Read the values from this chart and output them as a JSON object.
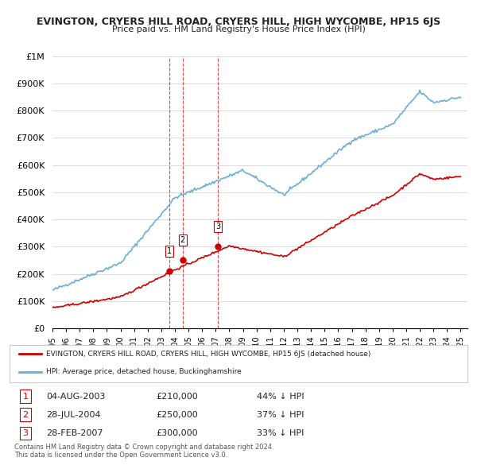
{
  "title": "EVINGTON, CRYERS HILL ROAD, CRYERS HILL, HIGH WYCOMBE, HP15 6JS",
  "subtitle": "Price paid vs. HM Land Registry's House Price Index (HPI)",
  "hpi_label": "HPI: Average price, detached house, Buckinghamshire",
  "property_label": "EVINGTON, CRYERS HILL ROAD, CRYERS HILL, HIGH WYCOMBE, HP15 6JS (detached house)",
  "hpi_color": "#6baed6",
  "property_color": "#cc0000",
  "ylim": [
    0,
    1000000
  ],
  "yticks": [
    0,
    100000,
    200000,
    300000,
    400000,
    500000,
    600000,
    700000,
    800000,
    900000,
    1000000
  ],
  "ytick_labels": [
    "£0",
    "£100K",
    "£200K",
    "£300K",
    "£400K",
    "£500K",
    "£600K",
    "£700K",
    "£800K",
    "£900K",
    "£1M"
  ],
  "xlim_start": 1995.0,
  "xlim_end": 2025.5,
  "sale_dates": [
    2003.586,
    2004.568,
    2007.163
  ],
  "sale_prices": [
    210000,
    250000,
    300000
  ],
  "sale_labels": [
    "1",
    "2",
    "3"
  ],
  "table_rows": [
    [
      "1",
      "04-AUG-2003",
      "£210,000",
      "44% ↓ HPI"
    ],
    [
      "2",
      "28-JUL-2004",
      "£250,000",
      "37% ↓ HPI"
    ],
    [
      "3",
      "28-FEB-2007",
      "£300,000",
      "33% ↓ HPI"
    ]
  ],
  "footer": "Contains HM Land Registry data © Crown copyright and database right 2024.\nThis data is licensed under the Open Government Licence v3.0.",
  "background_color": "#ffffff",
  "grid_color": "#cccccc"
}
